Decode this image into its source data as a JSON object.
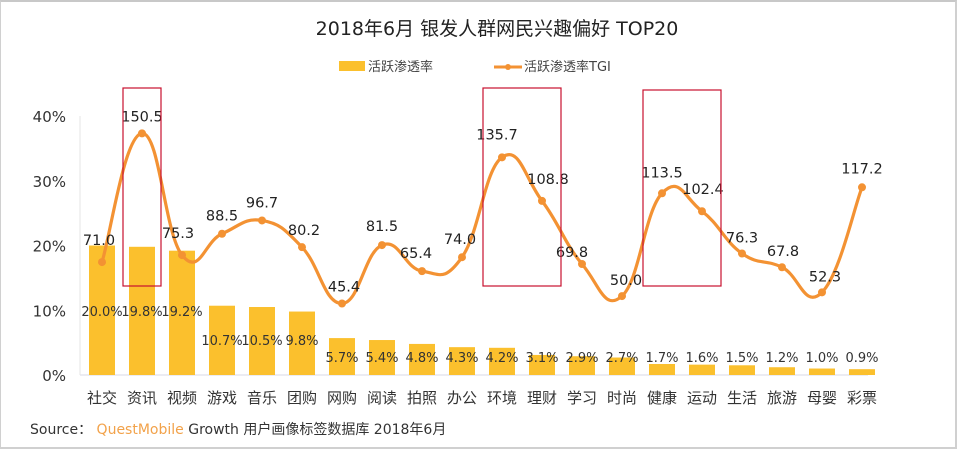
{
  "chart_data": {
    "type": "bar",
    "title": "2018年6月 银发人群网民兴趣偏好 TOP20",
    "legend_position": "top-center",
    "categories": [
      "社交",
      "资讯",
      "视频",
      "游戏",
      "音乐",
      "团购",
      "网购",
      "阅读",
      "拍照",
      "办公",
      "环境",
      "理财",
      "学习",
      "时尚",
      "健康",
      "运动",
      "生活",
      "旅游",
      "母婴",
      "彩票"
    ],
    "series": [
      {
        "name": "活跃渗透率",
        "type": "bar",
        "axis": "left",
        "color": "#fbc02d",
        "values": [
          20.0,
          19.8,
          19.2,
          10.7,
          10.5,
          9.8,
          5.7,
          5.4,
          4.8,
          4.3,
          4.2,
          3.1,
          2.9,
          2.7,
          1.7,
          1.6,
          1.5,
          1.2,
          1.0,
          0.9
        ],
        "labels": [
          "20.0%",
          "19.8%",
          "19.2%",
          "10.7%",
          "10.5%",
          "9.8%",
          "5.7%",
          "5.4%",
          "4.8%",
          "4.3%",
          "4.2%",
          "3.1%",
          "2.9%",
          "2.7%",
          "1.7%",
          "1.6%",
          "1.5%",
          "1.2%",
          "1.0%",
          "0.9%"
        ]
      },
      {
        "name": "活跃渗透率TGI",
        "type": "line",
        "smooth": true,
        "axis": "right-hidden",
        "color": "#f39233",
        "values": [
          71.0,
          150.5,
          75.3,
          88.5,
          96.7,
          80.2,
          45.4,
          81.5,
          65.4,
          74.0,
          135.7,
          108.8,
          69.8,
          50.0,
          113.5,
          102.4,
          76.3,
          67.8,
          52.3,
          117.2
        ],
        "labels": [
          "71.0",
          "150.5",
          "75.3",
          "88.5",
          "96.7",
          "80.2",
          "45.4",
          "81.5",
          "65.4",
          "74.0",
          "135.7",
          "108.8",
          "69.8",
          "50.0",
          "113.5",
          "102.4",
          "76.3",
          "67.8",
          "52.3",
          "117.2"
        ]
      }
    ],
    "y_axis": {
      "ticks": [
        "0%",
        "10%",
        "20%",
        "30%",
        "40%"
      ],
      "range": [
        0,
        40
      ],
      "unit": "%"
    },
    "y2_range": [
      0,
      160
    ],
    "highlights": [
      {
        "categories": [
          "资讯"
        ],
        "color": "#c8102e"
      },
      {
        "categories": [
          "环境",
          "理财"
        ],
        "color": "#c8102e"
      },
      {
        "categories": [
          "健康",
          "运动"
        ],
        "color": "#c8102e"
      }
    ],
    "grid": false
  },
  "source": {
    "prefix": "Source：",
    "brand": "QuestMobile",
    "text": "Growth 用户画像标签数据库 2018年6月"
  }
}
